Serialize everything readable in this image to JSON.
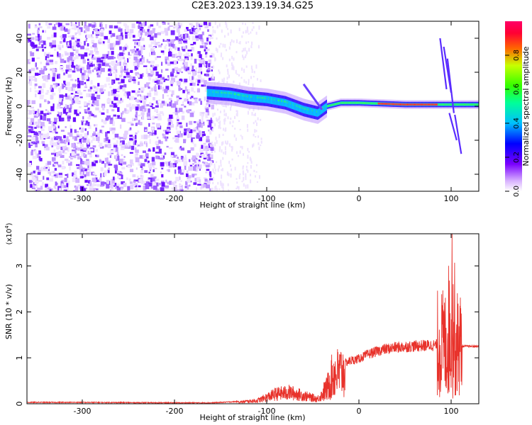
{
  "title": "C2E3.2023.139.19.34.G25",
  "chart_data": [
    {
      "type": "heatmap",
      "title": "C2E3.2023.139.19.34.G25",
      "xlabel": "Height of straight line (km)",
      "ylabel": "Frequency (Hz)",
      "xlim": [
        -360,
        130
      ],
      "ylim": [
        -50,
        50
      ],
      "x_ticks": [
        -300,
        -200,
        -100,
        0,
        100
      ],
      "y_ticks": [
        -40,
        -20,
        0,
        20,
        40
      ],
      "description_features": {
        "noise_region_x": [
          -360,
          -160
        ],
        "signal_track": [
          {
            "x": -165,
            "y": 8
          },
          {
            "x": -140,
            "y": 7
          },
          {
            "x": -120,
            "y": 5
          },
          {
            "x": -100,
            "y": 4
          },
          {
            "x": -80,
            "y": 2
          },
          {
            "x": -60,
            "y": -2
          },
          {
            "x": -45,
            "y": -4
          },
          {
            "x": -35,
            "y": 0
          },
          {
            "x": -20,
            "y": 2
          },
          {
            "x": 0,
            "y": 2
          },
          {
            "x": 50,
            "y": 1
          },
          {
            "x": 85,
            "y": 1
          },
          {
            "x": 100,
            "y": 1
          },
          {
            "x": 130,
            "y": 1
          }
        ],
        "spike_near_x": 95
      },
      "colorbar": {
        "label": "Normalized spectral amplitude",
        "range": [
          0,
          1
        ],
        "ticks": [
          0.0,
          0.2,
          0.4,
          0.6,
          0.8
        ],
        "colors": [
          "#ffffff",
          "#d9b3ff",
          "#7a00ff",
          "#0000ff",
          "#00bfff",
          "#00ff66",
          "#9aff00",
          "#ff3300",
          "#ff0066"
        ]
      }
    },
    {
      "type": "line",
      "xlabel": "Height of straight line (km)",
      "ylabel": "SNR (10 * v/v)",
      "y_multiplier": "(x10",
      "y_multiplier_exp": "4",
      "xlim": [
        -360,
        130
      ],
      "ylim": [
        0,
        3.7
      ],
      "x_ticks": [
        -300,
        -200,
        -100,
        0,
        100
      ],
      "y_ticks": [
        0,
        1,
        2,
        3
      ],
      "series": [
        {
          "color": "#e8322b",
          "envelope": [
            {
              "x": -360,
              "y": 0.03
            },
            {
              "x": -300,
              "y": 0.03
            },
            {
              "x": -200,
              "y": 0.02
            },
            {
              "x": -160,
              "y": 0.02
            },
            {
              "x": -130,
              "y": 0.05
            },
            {
              "x": -110,
              "y": 0.1
            },
            {
              "x": -90,
              "y": 0.3
            },
            {
              "x": -75,
              "y": 0.35
            },
            {
              "x": -60,
              "y": 0.25
            },
            {
              "x": -45,
              "y": 0.15
            },
            {
              "x": -35,
              "y": 0.4
            },
            {
              "x": -28,
              "y": 0.8
            },
            {
              "x": -20,
              "y": 0.85
            },
            {
              "x": -10,
              "y": 0.95
            },
            {
              "x": 0,
              "y": 1.0
            },
            {
              "x": 10,
              "y": 1.1
            },
            {
              "x": 25,
              "y": 1.2
            },
            {
              "x": 40,
              "y": 1.25
            },
            {
              "x": 60,
              "y": 1.28
            },
            {
              "x": 80,
              "y": 1.3
            },
            {
              "x": 88,
              "y": 1.3
            },
            {
              "x": 95,
              "y": 1.2
            },
            {
              "x": 100,
              "y": 1.0
            },
            {
              "x": 105,
              "y": 1.0
            },
            {
              "x": 112,
              "y": 1.25
            },
            {
              "x": 130,
              "y": 1.25
            }
          ],
          "peak": {
            "x": 101,
            "y": 3.7
          }
        }
      ]
    }
  ]
}
